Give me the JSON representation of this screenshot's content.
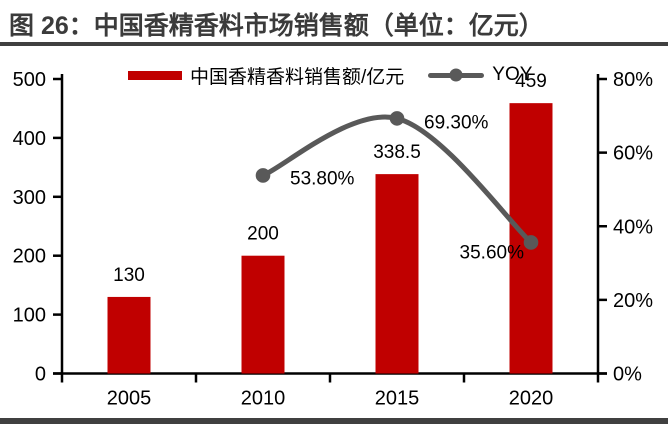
{
  "title": "图 26：中国香精香料市场销售额（单位：亿元）",
  "legend": {
    "bar_label": "中国香精香料销售额/亿元",
    "line_label": "YOY"
  },
  "colors": {
    "bar": "#c00000",
    "line": "#595959",
    "axis": "#000000",
    "label_text": "#000000",
    "title_text": "#3b3b3b",
    "rule": "#404040"
  },
  "chart_data": {
    "type": "bar",
    "subtype": "bar+line combo",
    "title": "图 26：中国香精香料市场销售额（单位：亿元）",
    "categories": [
      "2005",
      "2010",
      "2015",
      "2020"
    ],
    "series": [
      {
        "name": "中国香精香料销售额/亿元",
        "type": "bar",
        "axis": "left",
        "color": "#c00000",
        "values": [
          130,
          200,
          338.5,
          459
        ],
        "labels": [
          "130",
          "200",
          "338.5",
          "459"
        ]
      },
      {
        "name": "YOY",
        "type": "line",
        "axis": "right",
        "color": "#595959",
        "values": [
          null,
          53.8,
          69.3,
          35.6
        ],
        "labels": [
          null,
          "53.80%",
          "69.30%",
          "35.60%"
        ]
      }
    ],
    "left_axis": {
      "min": 0,
      "max": 500,
      "step": 100,
      "ticks": [
        "0",
        "100",
        "200",
        "300",
        "400",
        "500"
      ]
    },
    "right_axis": {
      "min": 0,
      "max": 80,
      "step": 20,
      "ticks": [
        "0%",
        "20%",
        "40%",
        "60%",
        "80%"
      ]
    },
    "grid": false,
    "legend_position": "top"
  }
}
